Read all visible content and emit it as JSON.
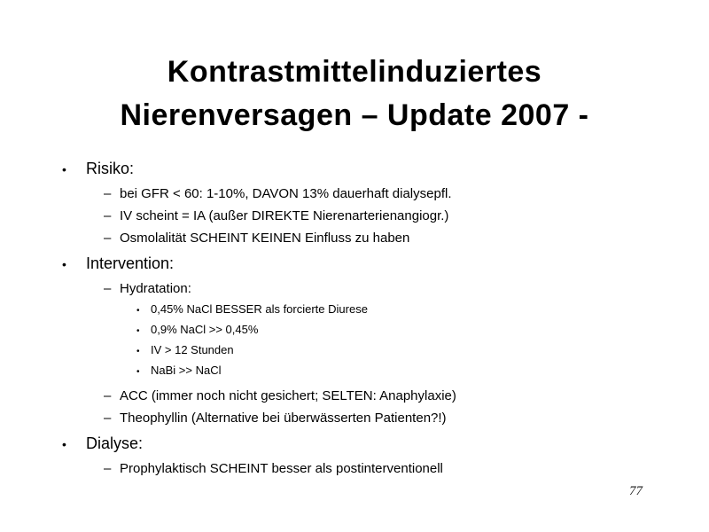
{
  "slide": {
    "title": {
      "line1": "Kontrastmittelinduziertes",
      "line2": "Nierenversagen – Update 2007 -"
    },
    "bullets": {
      "level1": "•",
      "level2": "–",
      "level3": "•"
    },
    "outline": {
      "items": [
        {
          "level": 1,
          "text": "Risiko:"
        },
        {
          "level": 2,
          "text": "bei GFR < 60: 1-10%, DAVON 13% dauerhaft dialysepfl."
        },
        {
          "level": 2,
          "text": "IV scheint = IA (außer DIREKTE Nierenarterienangiogr.)"
        },
        {
          "level": 2,
          "text": "Osmolalität SCHEINT KEINEN Einfluss zu haben"
        },
        {
          "level": 1,
          "text": "Intervention:"
        },
        {
          "level": 2,
          "text": "Hydratation:"
        },
        {
          "level": 3,
          "text": "0,45% NaCl BESSER als forcierte Diurese"
        },
        {
          "level": 3,
          "text": "0,9% NaCl >> 0,45%"
        },
        {
          "level": 3,
          "text": "IV > 12 Stunden"
        },
        {
          "level": 3,
          "text": "NaBi >> NaCl"
        },
        {
          "level": 2,
          "text": "ACC (immer noch nicht gesichert; SELTEN: Anaphylaxie)"
        },
        {
          "level": 2,
          "text": "Theophyllin (Alternative bei überwässerten Patienten?!)"
        },
        {
          "level": 1,
          "text": "Dialyse:"
        },
        {
          "level": 2,
          "text": "Prophylaktisch SCHEINT besser als postinterventionell"
        }
      ]
    },
    "page_number": "77",
    "colors": {
      "background": "#ffffff",
      "text": "#000000"
    }
  }
}
